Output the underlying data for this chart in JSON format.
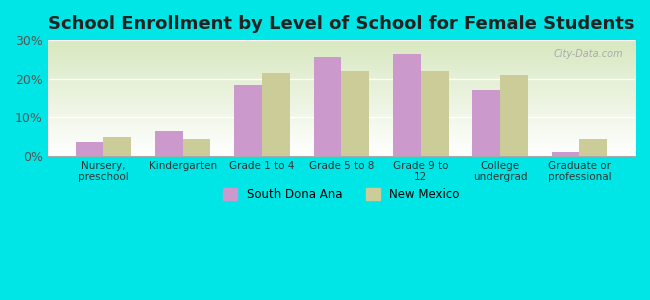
{
  "title": "School Enrollment by Level of School for Female Students",
  "categories": [
    "Nursery,\npreschool",
    "Kindergarten",
    "Grade 1 to 4",
    "Grade 5 to 8",
    "Grade 9 to\n12",
    "College\nundergrad",
    "Graduate or\nprofessional"
  ],
  "south_dona_ana": [
    3.5,
    6.5,
    18.5,
    25.5,
    26.5,
    17.0,
    1.0
  ],
  "new_mexico": [
    5.0,
    4.5,
    21.5,
    22.0,
    22.0,
    21.0,
    4.5
  ],
  "color_south": "#cc99cc",
  "color_nm": "#cccc99",
  "background_outer": "#00e5e5",
  "ylim": [
    0,
    30
  ],
  "yticks": [
    0,
    10,
    20,
    30
  ],
  "ytick_labels": [
    "0%",
    "10%",
    "20%",
    "30%"
  ],
  "legend_south": "South Dona Ana",
  "legend_nm": "New Mexico",
  "title_fontsize": 13,
  "bar_width": 0.35
}
